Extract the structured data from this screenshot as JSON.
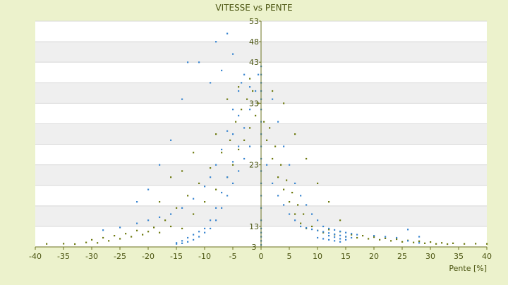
{
  "chart_data": {
    "type": "scatter",
    "title": "VITESSE vs PENTE",
    "xlabel": "Pente [%]",
    "ylabel": "",
    "xlim": [
      -40,
      40
    ],
    "ylim": [
      3,
      53
    ],
    "x_ticks": [
      -40,
      -35,
      -30,
      -25,
      -20,
      -15,
      -10,
      -5,
      0,
      5,
      10,
      15,
      20,
      25,
      30,
      35,
      40
    ],
    "y_tick_labels": [
      "3",
      "13",
      "23",
      "33",
      "43",
      "48",
      "53"
    ],
    "y_tick_values": [
      3,
      13,
      23,
      33,
      43,
      48,
      53
    ],
    "grid": true,
    "legend": "none",
    "series": [
      {
        "color": "#6e7a10",
        "points": [
          [
            -38,
            4.5
          ],
          [
            -35,
            4.6
          ],
          [
            -33,
            4.4
          ],
          [
            -31,
            5.2
          ],
          [
            -30,
            6.5
          ],
          [
            -29,
            5.0
          ],
          [
            -28,
            7.5
          ],
          [
            -27,
            6.0
          ],
          [
            -26,
            8.5
          ],
          [
            -25,
            7.0
          ],
          [
            -24,
            9.5
          ],
          [
            -23,
            8.0
          ],
          [
            -22,
            11.0
          ],
          [
            -21,
            9.0
          ],
          [
            -20,
            10.5
          ],
          [
            -19,
            12.5
          ],
          [
            -18,
            10.0
          ],
          [
            -17,
            14.0
          ],
          [
            -16,
            13.0
          ],
          [
            -15,
            16.0
          ],
          [
            -14,
            12.0
          ],
          [
            -13,
            18.0
          ],
          [
            -12,
            15.0
          ],
          [
            -11,
            20.0
          ],
          [
            -10,
            17.0
          ],
          [
            -9,
            22.5
          ],
          [
            -8,
            19.0
          ],
          [
            -7,
            25.0
          ],
          [
            -6,
            21.0
          ],
          [
            -5.5,
            27.0
          ],
          [
            -5,
            23.0
          ],
          [
            -4.5,
            30.0
          ],
          [
            -4,
            25.5
          ],
          [
            -3.5,
            32.0
          ],
          [
            -3,
            27.0
          ],
          [
            -2.5,
            34.0
          ],
          [
            -2,
            29.0
          ],
          [
            -1.5,
            36.0
          ],
          [
            -1,
            31.0
          ],
          [
            -0.5,
            33.0
          ],
          [
            0.5,
            30.0
          ],
          [
            1,
            27.0
          ],
          [
            1.5,
            29.0
          ],
          [
            2,
            24.0
          ],
          [
            2.5,
            26.0
          ],
          [
            3,
            21.0
          ],
          [
            3.5,
            23.0
          ],
          [
            4,
            19.0
          ],
          [
            4.5,
            20.5
          ],
          [
            5,
            17.0
          ],
          [
            5.5,
            18.5
          ],
          [
            6,
            15.0
          ],
          [
            6.5,
            16.5
          ],
          [
            7,
            13.5
          ],
          [
            7.5,
            15.0
          ],
          [
            8,
            12.0
          ],
          [
            9,
            13.0
          ],
          [
            10,
            11.0
          ],
          [
            11,
            10.0
          ],
          [
            12,
            11.5
          ],
          [
            13,
            9.0
          ],
          [
            14,
            10.5
          ],
          [
            15,
            8.0
          ],
          [
            16,
            9.0
          ],
          [
            17,
            7.5
          ],
          [
            18,
            8.5
          ],
          [
            19,
            7.0
          ],
          [
            20,
            7.8
          ],
          [
            21,
            6.5
          ],
          [
            22,
            7.2
          ],
          [
            23,
            6.0
          ],
          [
            24,
            6.8
          ],
          [
            25,
            5.5
          ],
          [
            26,
            6.2
          ],
          [
            27,
            5.2
          ],
          [
            28,
            5.8
          ],
          [
            29,
            4.8
          ],
          [
            30,
            5.4
          ],
          [
            31,
            4.5
          ],
          [
            32,
            5.0
          ],
          [
            33,
            4.4
          ],
          [
            34,
            4.8
          ],
          [
            36,
            4.5
          ],
          [
            38,
            4.6
          ],
          [
            40,
            4.5
          ],
          [
            -16,
            21.0
          ],
          [
            -12,
            25.0
          ],
          [
            -8,
            28.0
          ],
          [
            -4,
            37.0
          ],
          [
            -2,
            39.0
          ],
          [
            2,
            36.0
          ],
          [
            4,
            33.0
          ],
          [
            6,
            28.0
          ],
          [
            8,
            24.0
          ],
          [
            10,
            20.0
          ],
          [
            12,
            17.0
          ],
          [
            14,
            14.0
          ],
          [
            -18,
            17.0
          ],
          [
            -14,
            22.0
          ],
          [
            -6,
            34.0
          ]
        ]
      },
      {
        "color": "#3a86d0",
        "points": [
          [
            -28,
            11.2
          ],
          [
            -25,
            12.5
          ],
          [
            -22,
            13.5
          ],
          [
            -20,
            14.0
          ],
          [
            -18,
            14.5
          ],
          [
            -16,
            15.0
          ],
          [
            -14,
            16.0
          ],
          [
            -12,
            17.5
          ],
          [
            -10,
            19.5
          ],
          [
            -9,
            21.0
          ],
          [
            -8,
            23.0
          ],
          [
            -7,
            25.5
          ],
          [
            -6,
            28.5
          ],
          [
            -5,
            32.0
          ],
          [
            -4,
            36.0
          ],
          [
            -3.5,
            38.0
          ],
          [
            -15,
            5.0
          ],
          [
            -14,
            6.0
          ],
          [
            -13,
            7.5
          ],
          [
            -12,
            9.0
          ],
          [
            -11,
            10.5
          ],
          [
            -10,
            12.0
          ],
          [
            -9,
            14.0
          ],
          [
            -8,
            16.0
          ],
          [
            -7,
            18.5
          ],
          [
            -6,
            21.0
          ],
          [
            -5,
            23.5
          ],
          [
            -4,
            26.0
          ],
          [
            -3,
            29.0
          ],
          [
            -2,
            32.0
          ],
          [
            -1,
            36.0
          ],
          [
            -0.5,
            40.0
          ],
          [
            -13,
            43.0
          ],
          [
            -11,
            43.0
          ],
          [
            -8,
            48.0
          ],
          [
            -6,
            50.0
          ],
          [
            -5,
            45.0
          ],
          [
            -7,
            41.0
          ],
          [
            -9,
            38.0
          ],
          [
            -14,
            34.0
          ],
          [
            -16,
            27.0
          ],
          [
            -18,
            23.0
          ],
          [
            -20,
            19.0
          ],
          [
            -22,
            17.0
          ],
          [
            0,
            4.0
          ],
          [
            0,
            6.0
          ],
          [
            0,
            8.0
          ],
          [
            0,
            10.0
          ],
          [
            0,
            12.0
          ],
          [
            0,
            14.0
          ],
          [
            0,
            16.0
          ],
          [
            0,
            18.0
          ],
          [
            0,
            20.0
          ],
          [
            0,
            22.0
          ],
          [
            0,
            24.0
          ],
          [
            0,
            26.0
          ],
          [
            0,
            28.0
          ],
          [
            0,
            30.0
          ],
          [
            0,
            32.0
          ],
          [
            0,
            34.0
          ],
          [
            0,
            36.0
          ],
          [
            0,
            38.0
          ],
          [
            0,
            40.0
          ],
          [
            0,
            42.0
          ],
          [
            1,
            23.0
          ],
          [
            2,
            20.0
          ],
          [
            3,
            18.0
          ],
          [
            4,
            16.5
          ],
          [
            5,
            15.0
          ],
          [
            6,
            14.0
          ],
          [
            7,
            13.0
          ],
          [
            8,
            12.3
          ],
          [
            9,
            11.6
          ],
          [
            10,
            11.0
          ],
          [
            11,
            10.4
          ],
          [
            12,
            9.8
          ],
          [
            13,
            9.2
          ],
          [
            14,
            8.6
          ],
          [
            15,
            8.0
          ],
          [
            16,
            7.5
          ],
          [
            2,
            34.0
          ],
          [
            3,
            30.0
          ],
          [
            4,
            26.0
          ],
          [
            5,
            23.0
          ],
          [
            6,
            20.0
          ],
          [
            7,
            18.0
          ],
          [
            8,
            16.5
          ],
          [
            9,
            15.0
          ],
          [
            10,
            14.0
          ],
          [
            11,
            13.0
          ],
          [
            12,
            12.0
          ],
          [
            13,
            11.3
          ],
          [
            14,
            10.6
          ],
          [
            15,
            10.0
          ],
          [
            16,
            9.5
          ],
          [
            17,
            9.0
          ],
          [
            10,
            7.5
          ],
          [
            11,
            7.0
          ],
          [
            12,
            6.5
          ],
          [
            13,
            6.0
          ],
          [
            14,
            5.5
          ],
          [
            15,
            6.5
          ],
          [
            13,
            7.8
          ],
          [
            12,
            8.5
          ],
          [
            14,
            7.0
          ],
          [
            20,
            8.5
          ],
          [
            22,
            8.0
          ],
          [
            24,
            7.5
          ],
          [
            26,
            6.0
          ],
          [
            28,
            5.0
          ],
          [
            26,
            11.5
          ],
          [
            28,
            8.0
          ],
          [
            -2,
            26.0
          ],
          [
            -3,
            24.0
          ],
          [
            -4,
            22.0
          ],
          [
            -5,
            20.0
          ],
          [
            -6,
            18.0
          ],
          [
            -7,
            16.0
          ],
          [
            -8,
            14.0
          ],
          [
            -9,
            12.0
          ],
          [
            -10,
            10.0
          ],
          [
            -11,
            8.0
          ],
          [
            -12,
            6.5
          ],
          [
            -13,
            5.5
          ],
          [
            -14,
            4.8
          ],
          [
            -15,
            4.5
          ],
          [
            -3,
            40.0
          ],
          [
            -2,
            37.0
          ],
          [
            -4,
            31.0
          ],
          [
            -5,
            28.0
          ]
        ]
      }
    ]
  }
}
